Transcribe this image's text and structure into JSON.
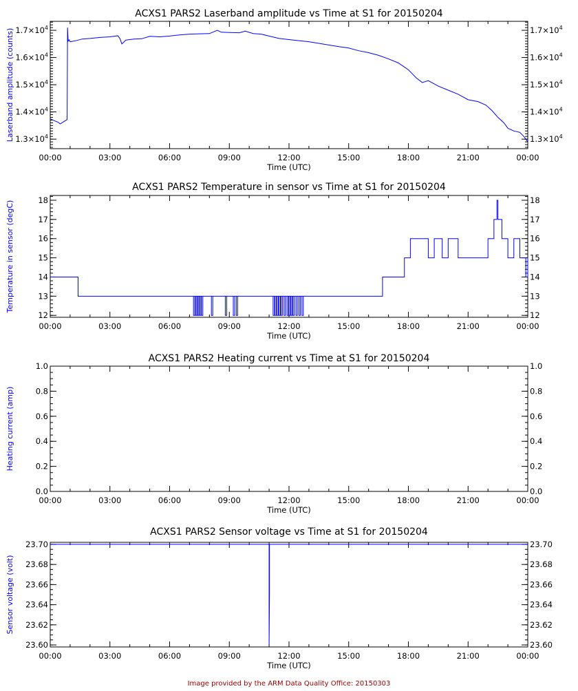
{
  "footer": "Image provided by the ARM Data Quality Office: 20150303",
  "colors": {
    "series": "#0000ff",
    "axes": "#000000",
    "footer": "#a00000"
  },
  "chart_data": [
    {
      "type": "line",
      "title": "ACXS1 PARS2 Laserband amplitude vs Time at S1 for 20150204",
      "xlabel": "Time (UTC)",
      "ylabel": "Laserband amplitude (counts)",
      "xlim": [
        0,
        24
      ],
      "xticks": [
        "00:00",
        "03:00",
        "06:00",
        "09:00",
        "12:00",
        "15:00",
        "18:00",
        "21:00",
        "00:00"
      ],
      "ylim": [
        12650,
        17330
      ],
      "yticks": [
        13000,
        14000,
        15000,
        16000,
        17000
      ],
      "ytick_labels": [
        [
          "1.3×10",
          "4"
        ],
        [
          "1.4×10",
          "4"
        ],
        [
          "1.5×10",
          "4"
        ],
        [
          "1.6×10",
          "4"
        ],
        [
          "1.7×10",
          "4"
        ]
      ],
      "y_minor": 100,
      "x": [
        0,
        0.2,
        0.4,
        0.5,
        0.7,
        0.85,
        0.87,
        0.9,
        0.95,
        1.0,
        1.3,
        1.6,
        2.0,
        2.5,
        3.0,
        3.4,
        3.5,
        3.6,
        3.8,
        4.2,
        4.6,
        5.0,
        5.5,
        6.0,
        6.5,
        7.0,
        7.5,
        8.0,
        8.4,
        8.6,
        9.0,
        9.5,
        9.8,
        10.2,
        10.6,
        11.0,
        11.5,
        12.0,
        12.5,
        13.0,
        13.5,
        14.0,
        14.5,
        15.0,
        15.5,
        16.0,
        16.5,
        17.0,
        17.5,
        17.8,
        18.0,
        18.2,
        18.4,
        18.7,
        19.0,
        19.5,
        20.0,
        20.5,
        21.0,
        21.5,
        21.9,
        22.2,
        22.5,
        22.8,
        23.0,
        23.3,
        23.6,
        23.8,
        24.0
      ],
      "y": [
        13750,
        13680,
        13620,
        13560,
        13650,
        13720,
        17100,
        16600,
        16650,
        16580,
        16620,
        16680,
        16700,
        16740,
        16760,
        16800,
        16700,
        16500,
        16640,
        16680,
        16690,
        16780,
        16760,
        16790,
        16830,
        16860,
        16870,
        16880,
        17000,
        16930,
        16920,
        16910,
        16970,
        16880,
        16860,
        16790,
        16700,
        16660,
        16620,
        16580,
        16520,
        16460,
        16400,
        16350,
        16250,
        16180,
        16080,
        15950,
        15800,
        15650,
        15550,
        15400,
        15250,
        15080,
        15150,
        14950,
        14800,
        14650,
        14450,
        14380,
        14250,
        14050,
        13800,
        13600,
        13400,
        13300,
        13250,
        13100,
        12900
      ]
    },
    {
      "type": "line",
      "title": "ACXS1 PARS2 Temperature in sensor vs Time at S1 for 20150204",
      "xlabel": "Time (UTC)",
      "ylabel": "Temperature in sensor (degC)",
      "xlim": [
        0,
        24
      ],
      "xticks": [
        "00:00",
        "03:00",
        "06:00",
        "09:00",
        "12:00",
        "15:00",
        "18:00",
        "21:00",
        "00:00"
      ],
      "ylim": [
        11.9,
        18.25
      ],
      "yticks": [
        12,
        13,
        14,
        15,
        16,
        17,
        18
      ],
      "ytick_labels": [
        "12",
        "13",
        "14",
        "15",
        "16",
        "17",
        "18"
      ],
      "y_minor": 0.2,
      "step": true,
      "x": [
        0,
        1.4,
        16.7,
        17.8,
        18.1,
        19.0,
        19.3,
        19.7,
        20.0,
        20.5,
        22.0,
        22.3,
        22.45,
        22.5,
        22.7,
        23.0,
        23.3,
        23.6,
        23.9,
        24.0
      ],
      "y": [
        14,
        13,
        14,
        15,
        16,
        15,
        16,
        15,
        16,
        15,
        16,
        17,
        18,
        17,
        16,
        15,
        16,
        15,
        14,
        15
      ],
      "dropouts_to_12": [
        7.2,
        7.3,
        7.4,
        7.5,
        7.6,
        8.1,
        8.8,
        9.2,
        9.35,
        11.2,
        11.3,
        11.4,
        11.5,
        11.6,
        11.75,
        11.9,
        12.0,
        12.1,
        12.2,
        12.35,
        12.5,
        12.65
      ]
    },
    {
      "type": "line",
      "title": "ACXS1 PARS2 Heating current vs Time at S1 for 20150204",
      "xlabel": "Time (UTC)",
      "ylabel": "Heating current (amp)",
      "xlim": [
        0,
        24
      ],
      "xticks": [
        "00:00",
        "03:00",
        "06:00",
        "09:00",
        "12:00",
        "15:00",
        "18:00",
        "21:00",
        "00:00"
      ],
      "ylim": [
        0,
        1
      ],
      "yticks": [
        0,
        0.2,
        0.4,
        0.6,
        0.8,
        1.0
      ],
      "ytick_labels": [
        "0.0",
        "0.2",
        "0.4",
        "0.6",
        "0.8",
        "1.0"
      ],
      "y_minor": 0.05,
      "x": [],
      "y": []
    },
    {
      "type": "line",
      "title": "ACXS1 PARS2 Sensor voltage vs Time at S1 for 20150204",
      "xlabel": "Time (UTC)",
      "ylabel": "Sensor voltage (volt)",
      "xlim": [
        0,
        24
      ],
      "xticks": [
        "00:00",
        "03:00",
        "06:00",
        "09:00",
        "12:00",
        "15:00",
        "18:00",
        "21:00",
        "00:00"
      ],
      "ylim": [
        23.598,
        23.702
      ],
      "yticks": [
        23.6,
        23.62,
        23.64,
        23.66,
        23.68,
        23.7
      ],
      "ytick_labels": [
        "23.60",
        "23.62",
        "23.64",
        "23.66",
        "23.68",
        "23.70"
      ],
      "y_minor": 0.005,
      "x": [
        0,
        11.0,
        11.0,
        11.02,
        11.02,
        24
      ],
      "y": [
        23.7,
        23.7,
        23.6,
        23.65,
        23.7,
        23.7
      ]
    }
  ]
}
